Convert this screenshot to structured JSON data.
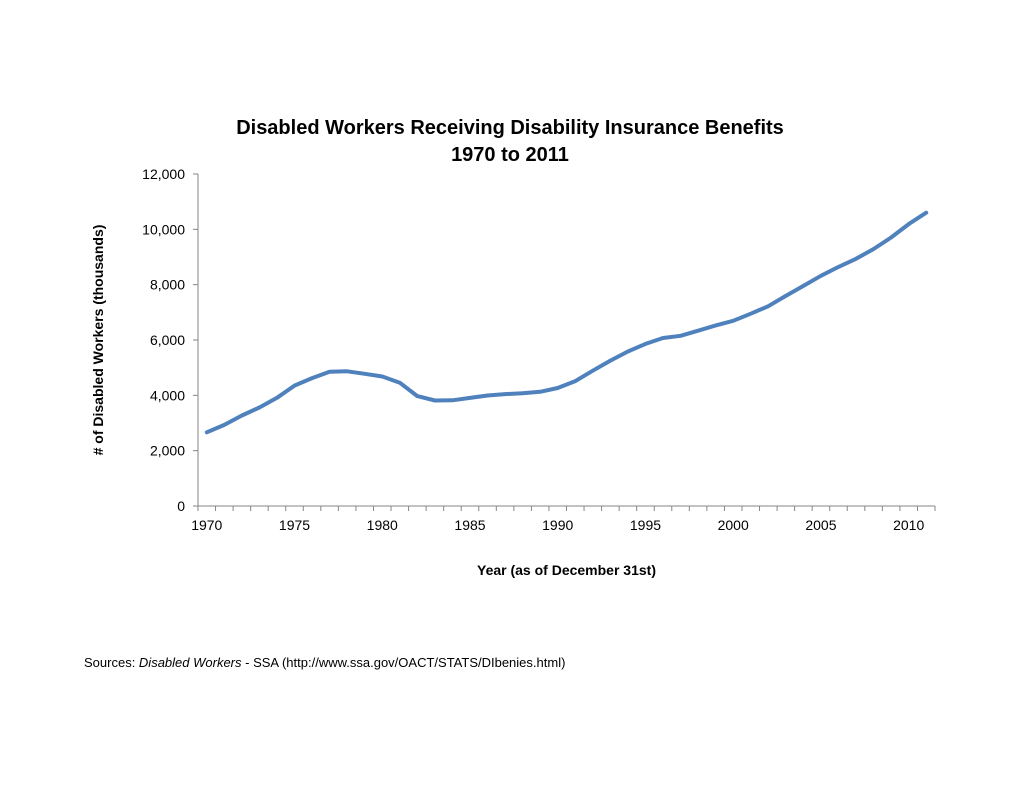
{
  "chart_data": {
    "type": "line",
    "title": "Disabled Workers Receiving Disability Insurance Benefits",
    "subtitle": "1970 to 2011",
    "xlabel": "Year (as of December 31st)",
    "ylabel": "# of Disabled Workers (thousands)",
    "ylim": [
      0,
      12000
    ],
    "yticks": [
      "0",
      "2,000",
      "4,000",
      "6,000",
      "8,000",
      "10,000",
      "12,000"
    ],
    "xticks": [
      "1970",
      "1975",
      "1980",
      "1985",
      "1990",
      "1995",
      "2000",
      "2005",
      "2010"
    ],
    "grid": false,
    "line_color": "#4F81BD",
    "x": [
      1970,
      1971,
      1972,
      1973,
      1974,
      1975,
      1976,
      1977,
      1978,
      1979,
      1980,
      1981,
      1982,
      1983,
      1984,
      1985,
      1986,
      1987,
      1988,
      1989,
      1990,
      1991,
      1992,
      1993,
      1994,
      1995,
      1996,
      1997,
      1998,
      1999,
      2000,
      2001,
      2002,
      2003,
      2004,
      2005,
      2006,
      2007,
      2008,
      2009,
      2010,
      2011
    ],
    "values": [
      2665,
      2930,
      3272,
      3559,
      3911,
      4352,
      4624,
      4854,
      4869,
      4777,
      4682,
      4457,
      3973,
      3813,
      3822,
      3907,
      3993,
      4045,
      4074,
      4129,
      4266,
      4513,
      4890,
      5254,
      5584,
      5858,
      6072,
      6153,
      6335,
      6528,
      6695,
      6951,
      7222,
      7595,
      7954,
      8320,
      8641,
      8936,
      9290,
      9704,
      10190,
      10600
    ]
  },
  "footer": {
    "prefix": "Sources: ",
    "italic": "Disabled Workers",
    "suffix": " - SSA (http://www.ssa.gov/OACT/STATS/DIbenies.html)"
  }
}
